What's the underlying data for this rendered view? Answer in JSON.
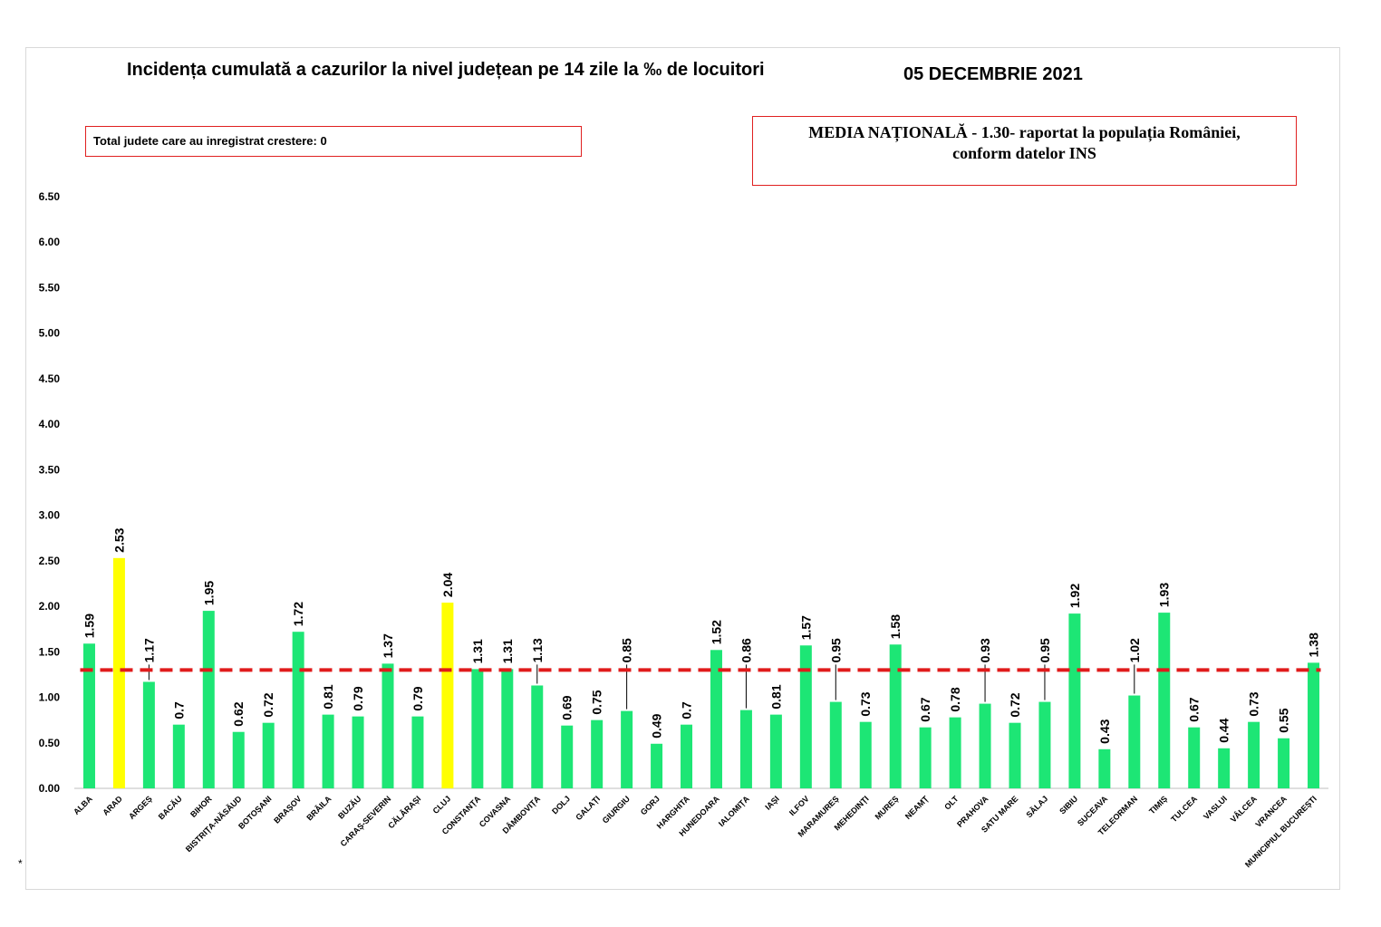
{
  "header": {
    "title": "Incidența cumulată a cazurilor la nivel județean pe 14 zile la ‰ de locuitori",
    "date": "05 DECEMBRIE 2021"
  },
  "boxes": {
    "total_crestere": "Total judete care au inregistrat crestere: 0",
    "media_line1": "MEDIA NAȚIONALĂ - 1.30-  raportat la populația României,",
    "media_line2": "conform datelor INS"
  },
  "footnote": "*",
  "colors": {
    "bar_default": "#1de675",
    "bar_highlight": "#ffff00",
    "reference_line": "#e01b1b"
  },
  "chart_data": {
    "type": "bar",
    "title": "Incidența cumulată a cazurilor la nivel județean pe 14 zile la ‰ de locuitori",
    "xlabel": "",
    "ylabel": "",
    "ylim": [
      0,
      6.5
    ],
    "yticks": [
      "0.00",
      "0.50",
      "1.00",
      "1.50",
      "2.00",
      "2.50",
      "3.00",
      "3.50",
      "4.00",
      "4.50",
      "5.00",
      "5.50",
      "6.00",
      "6.50"
    ],
    "grid": false,
    "reference_value": 1.3,
    "categories": [
      "ALBA",
      "ARAD",
      "ARGEȘ",
      "BACĂU",
      "BIHOR",
      "BISTRIȚA-NĂSĂUD",
      "BOTOȘANI",
      "BRAȘOV",
      "BRĂILA",
      "BUZĂU",
      "CARAȘ-SEVERIN",
      "CĂLĂRAȘI",
      "CLUJ",
      "CONSTANȚA",
      "COVASNA",
      "DÂMBOVIȚA",
      "DOLJ",
      "GALAȚI",
      "GIURGIU",
      "GORJ",
      "HARGHITA",
      "HUNEDOARA",
      "IALOMIȚA",
      "IAȘI",
      "ILFOV",
      "MARAMUREȘ",
      "MEHEDINȚI",
      "MUREȘ",
      "NEAMȚ",
      "OLT",
      "PRAHOVA",
      "SATU MARE",
      "SĂLAJ",
      "SIBIU",
      "SUCEAVA",
      "TELEORMAN",
      "TIMIȘ",
      "TULCEA",
      "VASLUI",
      "VÂLCEA",
      "VRANCEA",
      "MUNICIPIUL BUCUREȘTI"
    ],
    "values": [
      1.59,
      2.53,
      1.17,
      0.7,
      1.95,
      0.62,
      0.72,
      1.72,
      0.81,
      0.79,
      1.37,
      0.79,
      2.04,
      1.31,
      1.31,
      1.13,
      0.69,
      0.75,
      0.85,
      0.49,
      0.7,
      1.52,
      0.86,
      0.81,
      1.57,
      0.95,
      0.73,
      1.58,
      0.67,
      0.78,
      0.93,
      0.72,
      0.95,
      1.92,
      0.43,
      1.02,
      1.93,
      0.67,
      0.44,
      0.73,
      0.55,
      1.38
    ],
    "labels": [
      "1.59",
      "2.53",
      "1.17",
      "0.7",
      "1.95",
      "0.62",
      "0.72",
      "1.72",
      "0.81",
      "0.79",
      "1.37",
      "0.79",
      "2.04",
      "1.31",
      "1.31",
      "1.13",
      "0.69",
      "0.75",
      "0.85",
      "0.49",
      "0.7",
      "1.52",
      "0.86",
      "0.81",
      "1.57",
      "0.95",
      "0.73",
      "1.58",
      "0.67",
      "0.78",
      "0.93",
      "0.72",
      "0.95",
      "1.92",
      "0.43",
      "1.02",
      "1.93",
      "0.67",
      "0.44",
      "0.73",
      "0.55",
      "1.38"
    ],
    "highlighted": [
      "ARAD",
      "CLUJ"
    ]
  }
}
